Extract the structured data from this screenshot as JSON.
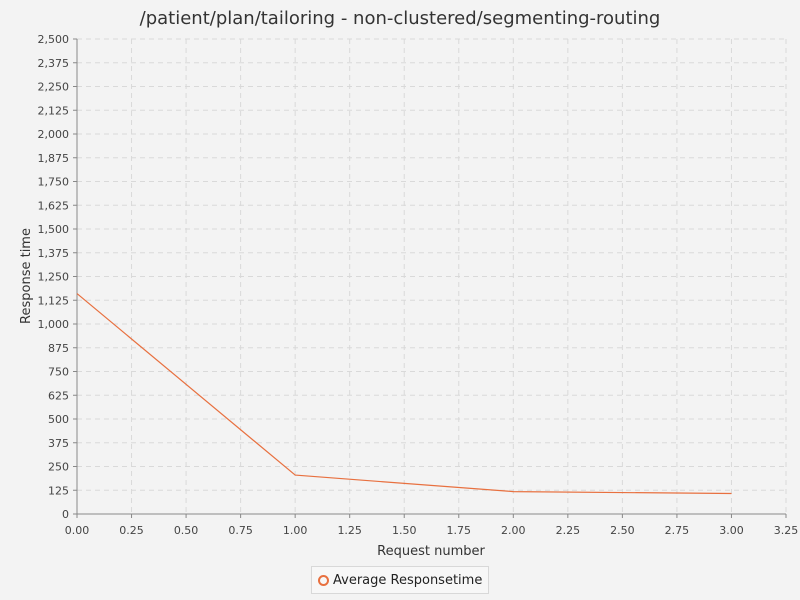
{
  "chart_data": {
    "type": "line",
    "title": "/patient/plan/tailoring - non-clustered/segmenting-routing",
    "xlabel": "Request number",
    "ylabel": "Response time",
    "xlim": [
      0,
      3.25
    ],
    "ylim": [
      0,
      2500
    ],
    "x_ticks": [
      "0.00",
      "0.25",
      "0.50",
      "0.75",
      "1.00",
      "1.25",
      "1.50",
      "1.75",
      "2.00",
      "2.25",
      "2.50",
      "2.75",
      "3.00",
      "3.25"
    ],
    "y_ticks": [
      "0",
      "125",
      "250",
      "375",
      "500",
      "625",
      "750",
      "875",
      "1,000",
      "1,125",
      "1,250",
      "1,375",
      "1,500",
      "1,625",
      "1,750",
      "1,875",
      "2,000",
      "2,125",
      "2,250",
      "2,375",
      "2,500"
    ],
    "grid": true,
    "legend_position": "bottom-center",
    "series": [
      {
        "name": "Average Responsetime",
        "color": "#e8703f",
        "x": [
          0,
          1,
          2,
          3
        ],
        "y": [
          1160,
          205,
          118,
          108
        ]
      }
    ]
  }
}
